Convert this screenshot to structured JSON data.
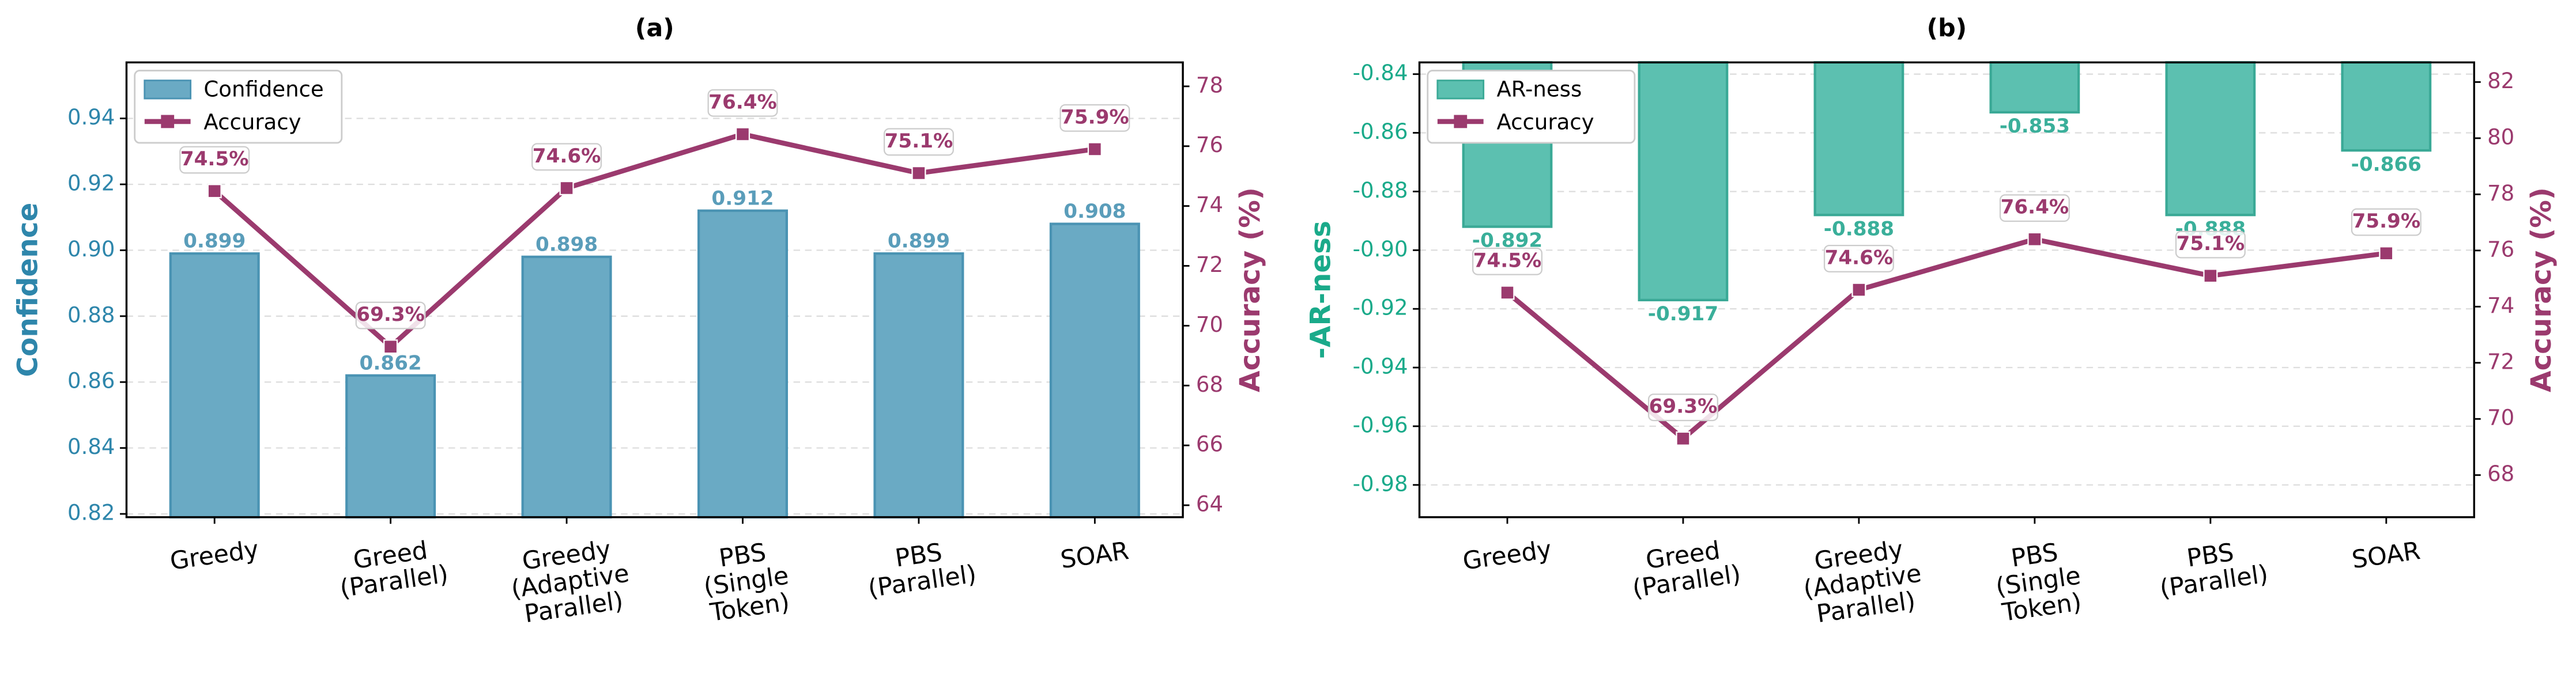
{
  "chart_data": [
    {
      "type": "combo",
      "title": "(a)",
      "ylabel": "Confidence",
      "y2label": "Accuracy (%)",
      "categories": [
        "Greedy",
        "Greed\n(Parallel)",
        "Greedy\n(Adaptive\nParallel)",
        "PBS\n(Single\nToken)",
        "PBS\n(Parallel)",
        "SOAR"
      ],
      "series": [
        {
          "name": "Confidence",
          "color": "#6aaac4",
          "edge": "#4a93b3",
          "label_color": "#5a9dba",
          "values": [
            0.899,
            0.862,
            0.898,
            0.912,
            0.899,
            0.908
          ]
        },
        {
          "name": "Accuracy",
          "color": "#9b3a6e",
          "axis": "y2",
          "values": [
            74.5,
            69.3,
            74.6,
            76.4,
            75.1,
            75.9
          ],
          "value_labels": [
            "74.5%",
            "69.3%",
            "74.6%",
            "76.4%",
            "75.1%",
            "75.9%"
          ]
        }
      ],
      "ylim": [
        0.819,
        0.957
      ],
      "yticks": [
        0.82,
        0.84,
        0.86,
        0.88,
        {
          "value": 0.9,
          "label": "0.90"
        },
        0.92,
        0.94
      ],
      "y2lim": [
        63.6,
        78.8
      ],
      "y2ticks": [
        64,
        66,
        68,
        70,
        72,
        74,
        76,
        78
      ],
      "ycolor": "#2e86ab",
      "grid": true,
      "legend": "upper left"
    },
    {
      "type": "combo",
      "title": "(b)",
      "ylabel": "-AR-ness",
      "y2label": "Accuracy (%)",
      "categories": [
        "Greedy",
        "Greed\n(Parallel)",
        "Greedy\n(Adaptive\nParallel)",
        "PBS\n(Single\nToken)",
        "PBS\n(Parallel)",
        "SOAR"
      ],
      "series": [
        {
          "name": "AR-ness",
          "color": "#5cc0b0",
          "edge": "#3aa996",
          "label_color": "#3aaf9a",
          "values": [
            -0.892,
            -0.917,
            -0.888,
            -0.853,
            -0.888,
            -0.866
          ]
        },
        {
          "name": "Accuracy",
          "color": "#9b3a6e",
          "axis": "y2",
          "values": [
            74.5,
            69.3,
            74.6,
            76.4,
            75.1,
            75.9
          ],
          "value_labels": [
            "74.5%",
            "69.3%",
            "74.6%",
            "76.4%",
            "75.1%",
            "75.9%"
          ]
        }
      ],
      "ylim": [
        -0.991,
        -0.836
      ],
      "yticks": [
        -0.84,
        -0.86,
        -0.88,
        {
          "value": -0.9,
          "label": "-0.90"
        },
        -0.92,
        -0.94,
        -0.96,
        -0.98
      ],
      "y2lim": [
        66.5,
        82.7
      ],
      "y2ticks": [
        68,
        70,
        72,
        74,
        76,
        78,
        80,
        82
      ],
      "ycolor": "#1aaa8a",
      "grid": true,
      "legend": "upper left"
    }
  ]
}
